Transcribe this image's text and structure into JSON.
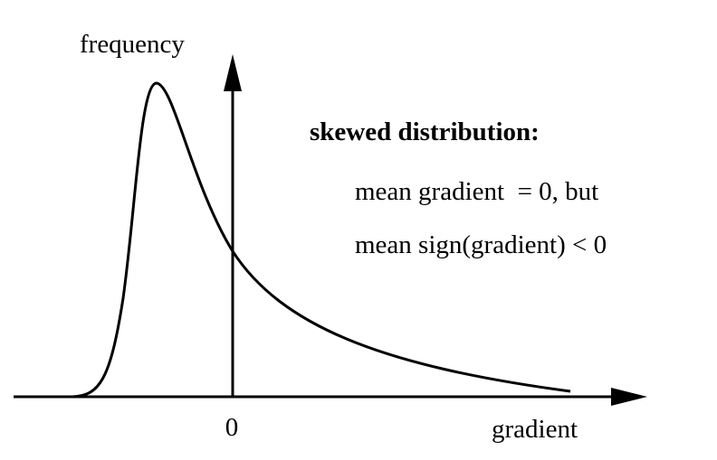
{
  "y_axis_label": "frequency",
  "x_axis_label": "gradient",
  "origin_label": "0",
  "annotation": {
    "heading": "skewed distribution:",
    "lines": [
      "mean gradient  = 0, but",
      "mean sign(gradient) < 0"
    ]
  }
}
